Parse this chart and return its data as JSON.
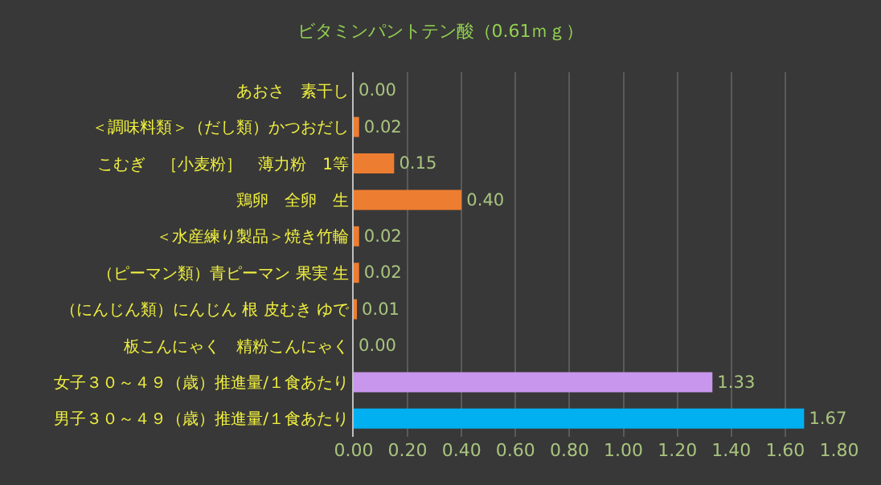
{
  "chart_data": {
    "type": "bar",
    "orientation": "horizontal",
    "title": "ビタミンパントテン酸（0.61ｍｇ）",
    "categories": [
      "あおさ　素干し",
      "＜調味料類＞（だし類）かつおだし",
      "こむぎ　［小麦粉］　薄力粉　1等",
      "鶏卵　全卵　生",
      "＜水産練り製品＞焼き竹輪",
      "（ピーマン類）青ピーマン 果実 生",
      "（にんじん類）にんじん 根 皮むき ゆで",
      "板こんにゃく　精粉こんにゃく",
      "女子３０～４９（歳）推進量/１食あたり",
      "男子３０～４９（歳）推進量/１食あたり"
    ],
    "values": [
      0.0,
      0.02,
      0.15,
      0.4,
      0.02,
      0.02,
      0.01,
      0.0,
      1.33,
      1.67
    ],
    "value_labels": [
      "0.00",
      "0.02",
      "0.15",
      "0.40",
      "0.02",
      "0.02",
      "0.01",
      "0.00",
      "1.33",
      "1.67"
    ],
    "colors": [
      "#ed7d31",
      "#ed7d31",
      "#ed7d31",
      "#ed7d31",
      "#ed7d31",
      "#ed7d31",
      "#ed7d31",
      "#ed7d31",
      "#c896ec",
      "#00b0f0"
    ],
    "xlim": [
      0,
      1.8
    ],
    "xticks": [
      {
        "value": 0,
        "label": "0.00"
      },
      {
        "value": 0.2,
        "label": "0.20"
      },
      {
        "value": 0.4,
        "label": "0.40"
      },
      {
        "value": 0.6,
        "label": "0.60"
      },
      {
        "value": 0.8,
        "label": "0.80"
      },
      {
        "value": 1.0,
        "label": "1.00"
      },
      {
        "value": 1.2,
        "label": "1.20"
      },
      {
        "value": 1.4,
        "label": "1.40"
      },
      {
        "value": 1.6,
        "label": "1.60"
      },
      {
        "value": 1.8,
        "label": "1.80"
      }
    ],
    "grid": "x",
    "legend": false
  }
}
